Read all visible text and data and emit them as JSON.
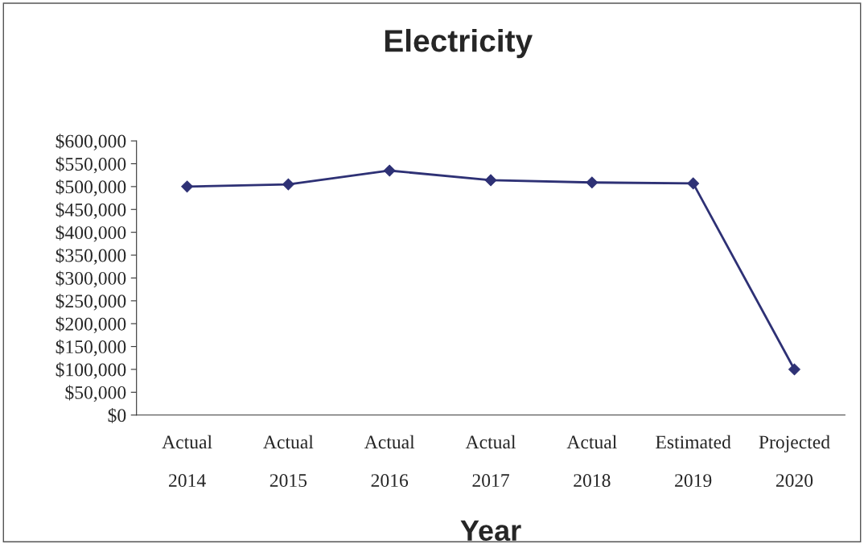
{
  "chart_data": {
    "type": "line",
    "title": "Electricity",
    "xlabel": "Year",
    "categories": [
      "Actual\n2014",
      "Actual\n2015",
      "Actual\n2016",
      "Actual\n2017",
      "Actual\n2018",
      "Estimated\n2019",
      "Projected\n2020"
    ],
    "series": [
      {
        "color": "#2e3175",
        "values": [
          500000,
          505000,
          535000,
          514000,
          509000,
          507000,
          100000
        ]
      }
    ],
    "ylim": [
      0,
      600000
    ],
    "yticks": [
      {
        "value": 0,
        "label": "$0"
      },
      {
        "value": 50000,
        "label": "$50,000"
      },
      {
        "value": 100000,
        "label": "$100,000"
      },
      {
        "value": 150000,
        "label": "$150,000"
      },
      {
        "value": 200000,
        "label": "$200,000"
      },
      {
        "value": 250000,
        "label": "$250,000"
      },
      {
        "value": 300000,
        "label": "$300,000"
      },
      {
        "value": 350000,
        "label": "$350,000"
      },
      {
        "value": 400000,
        "label": "$400,000"
      },
      {
        "value": 450000,
        "label": "$450,000"
      },
      {
        "value": 500000,
        "label": "$500,000"
      },
      {
        "value": 550000,
        "label": "$550,000"
      },
      {
        "value": 600000,
        "label": "$600,000"
      }
    ],
    "marker": "diamond",
    "line_style": "solid",
    "grid": false,
    "legend": false
  }
}
